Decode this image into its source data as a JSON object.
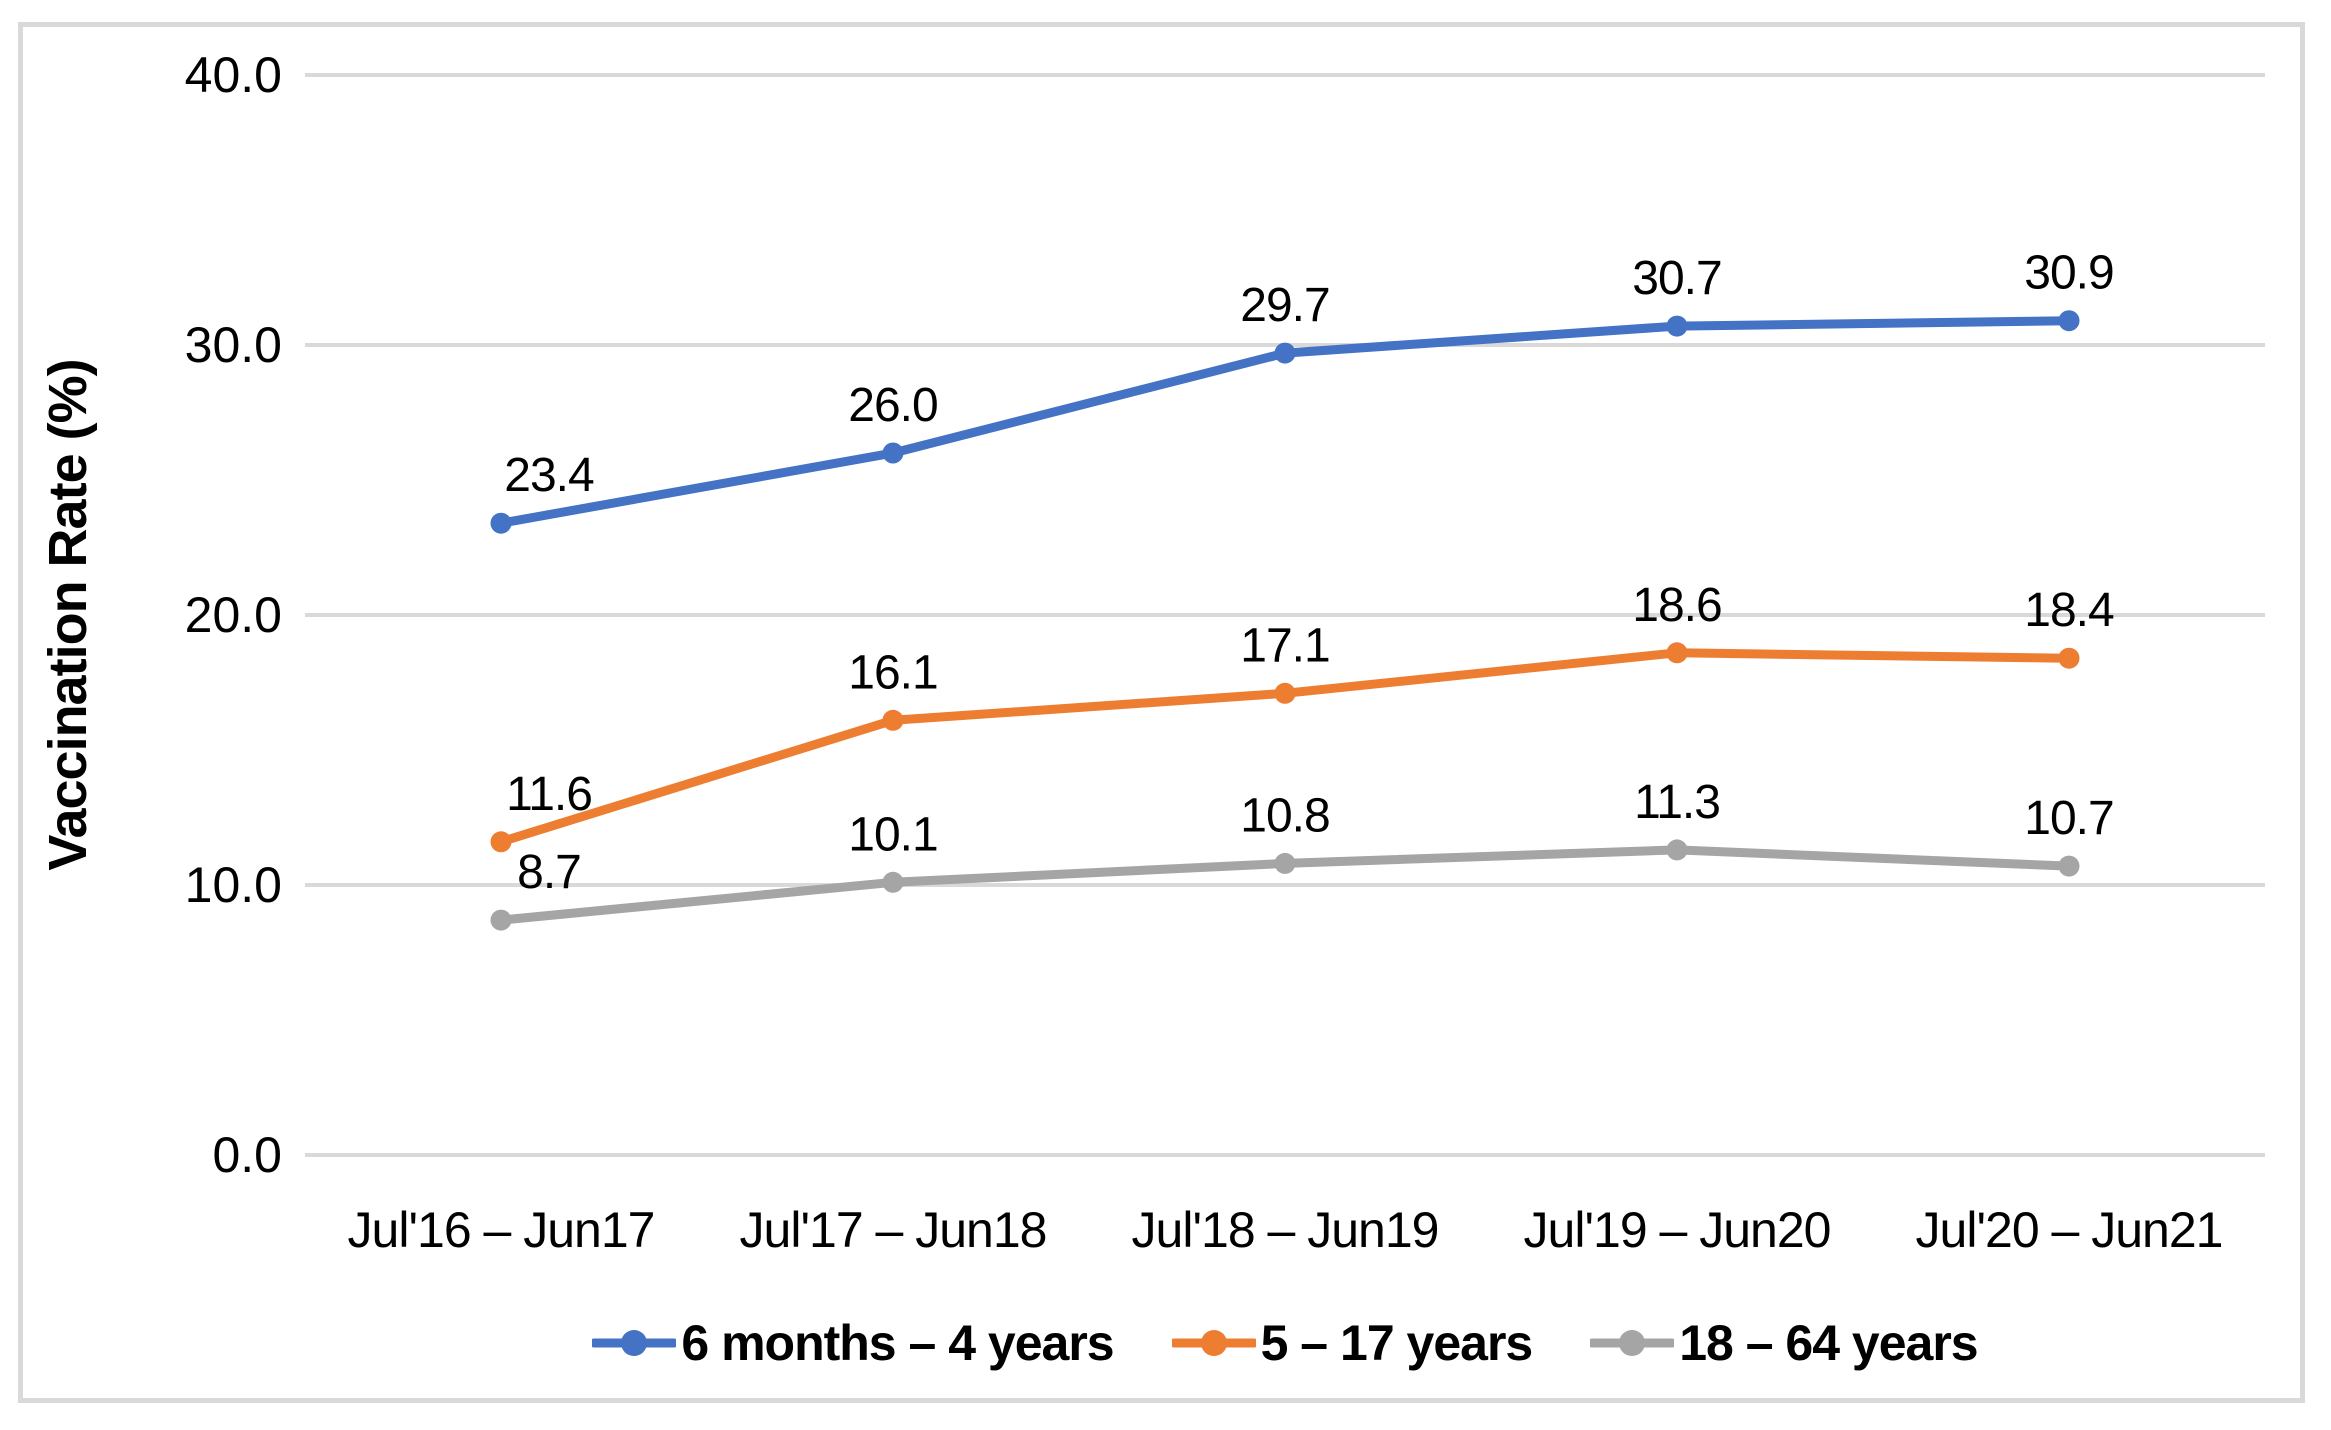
{
  "figure": {
    "background": "#ffffff",
    "border_color": "#d9d9d9"
  },
  "chart_data": {
    "type": "line",
    "title": "",
    "xlabel": "",
    "ylabel": "Vaccination Rate (%)",
    "ylim": [
      0,
      40
    ],
    "grid": "horizontal",
    "gridline_color": "#d9d9d9",
    "text_color": "#000000",
    "legend_position": "bottom",
    "yticks": [
      {
        "value": 40,
        "label": "40.0"
      },
      {
        "value": 30,
        "label": "30.0"
      },
      {
        "value": 20,
        "label": "20.0"
      },
      {
        "value": 10,
        "label": "10.0"
      },
      {
        "value": 0,
        "label": "0.0"
      }
    ],
    "categories": [
      "Jul'16 – Jun17",
      "Jul'17 – Jun18",
      "Jul'18 – Jun19",
      "Jul'19 – Jun20",
      "Jul'20 – Jun21"
    ],
    "series": [
      {
        "name": "6 months – 4 years",
        "color": "#4472C4",
        "values": [
          23.4,
          26.0,
          29.7,
          30.7,
          30.9
        ],
        "data_labels": [
          "23.4",
          "26.0",
          "29.7",
          "30.7",
          "30.9"
        ]
      },
      {
        "name": "5 – 17 years",
        "color": "#ED7D31",
        "values": [
          11.6,
          16.1,
          17.1,
          18.6,
          18.4
        ],
        "data_labels": [
          "11.6",
          "16.1",
          "17.1",
          "18.6",
          "18.4"
        ]
      },
      {
        "name": "18 – 64 years",
        "color": "#A5A5A5",
        "values": [
          8.7,
          10.1,
          10.8,
          11.3,
          10.7
        ],
        "data_labels": [
          "8.7",
          "10.1",
          "10.8",
          "11.3",
          "10.7"
        ]
      }
    ]
  }
}
